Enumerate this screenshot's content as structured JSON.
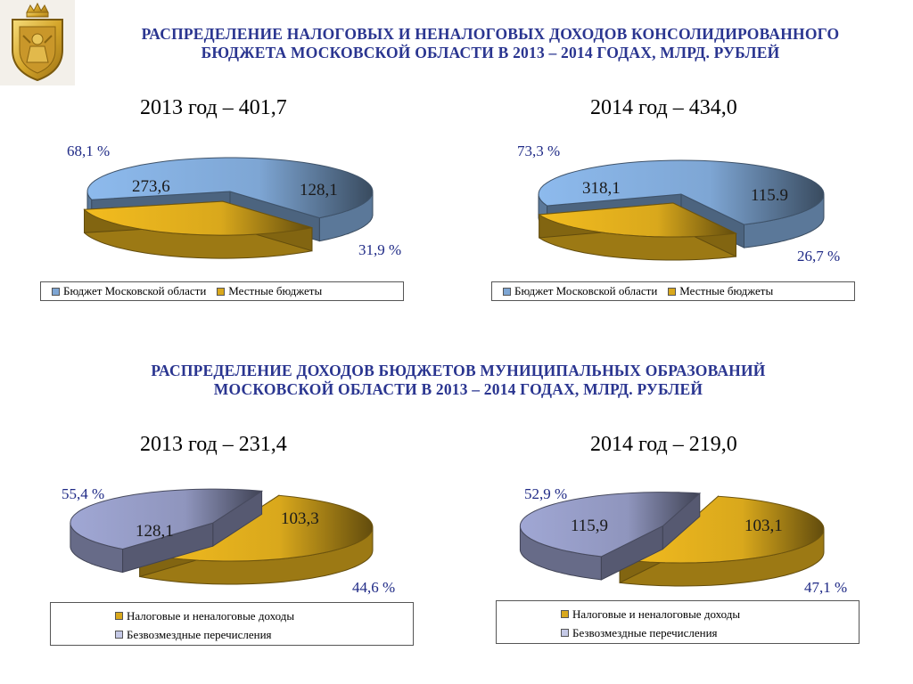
{
  "title_top": {
    "line1": "РАСПРЕДЕЛЕНИЕ НАЛОГОВЫХ И НЕНАЛОГОВЫХ ДОХОДОВ КОНСОЛИДИРОВАННОГО",
    "line2": "БЮДЖЕТА МОСКОВСКОЙ ОБЛАСТИ В 2013 – 2014 ГОДАХ, МЛРД. РУБЛЕЙ"
  },
  "title_mid": {
    "line1": "РАСПРЕДЕЛЕНИЕ ДОХОДОВ БЮДЖЕТОВ МУНИЦИПАЛЬНЫХ ОБРАЗОВАНИЙ",
    "line2": "МОСКОВСКОЙ ОБЛАСТИ В 2013 – 2014 ГОДАХ, МЛРД. РУБЛЕЙ"
  },
  "colors": {
    "title": "#2a3590",
    "percent_text": "#1f2a86",
    "blue": "#7ea6d4",
    "gold": "#d9a81c",
    "slate": "#8f95bd"
  },
  "chart_data": [
    {
      "type": "pie",
      "year_label": "2013 год – 401,7",
      "slices": [
        {
          "label": "Бюджет Московской области",
          "value": 273.6,
          "value_text": "273,6",
          "percent_text": "68,1 %",
          "color": "#7ea6d4"
        },
        {
          "label": "Местные бюджеты",
          "value": 128.1,
          "value_text": "128,1",
          "percent_text": "31,9 %",
          "color": "#d9a81c"
        }
      ],
      "legend": [
        "Бюджет Московской области",
        "Местные бюджеты"
      ],
      "legend_placement": "bottom"
    },
    {
      "type": "pie",
      "year_label": "2014 год – 434,0",
      "slices": [
        {
          "label": "Бюджет Московской области",
          "value": 318.1,
          "value_text": "318,1",
          "percent_text": "73,3 %",
          "color": "#7ea6d4"
        },
        {
          "label": "Местные бюджеты",
          "value": 115.9,
          "value_text": "115.9",
          "percent_text": "26,7 %",
          "color": "#d9a81c"
        }
      ],
      "legend": [
        "Бюджет Московской области",
        "Местные бюджеты"
      ],
      "legend_placement": "bottom"
    },
    {
      "type": "pie",
      "year_label": "2013 год – 231,4",
      "slices": [
        {
          "label": "Налоговые и неналоговые доходы",
          "value": 128.1,
          "value_text": "128,1",
          "percent_text": "55,4 %",
          "color": "#d9a81c"
        },
        {
          "label": "Безвозмездные перечисления",
          "value": 103.3,
          "value_text": "103,3",
          "percent_text": "44,6 %",
          "color": "#8f95bd"
        }
      ],
      "legend": [
        "Налоговые и неналоговые доходы",
        "Безвозмездные перечисления"
      ],
      "legend_placement": "bottom"
    },
    {
      "type": "pie",
      "year_label": "2014 год – 219,0",
      "slices": [
        {
          "label": "Налоговые и неналоговые доходы",
          "value": 115.9,
          "value_text": "115,9",
          "percent_text": "52,9 %",
          "color": "#d9a81c"
        },
        {
          "label": "Безвозмездные перечисления",
          "value": 103.1,
          "value_text": "103,1",
          "percent_text": "47,1 %",
          "color": "#8f95bd"
        }
      ],
      "legend": [
        "Налоговые и неналоговые доходы",
        "Безвозмездные перечисления"
      ],
      "legend_placement": "bottom"
    }
  ]
}
